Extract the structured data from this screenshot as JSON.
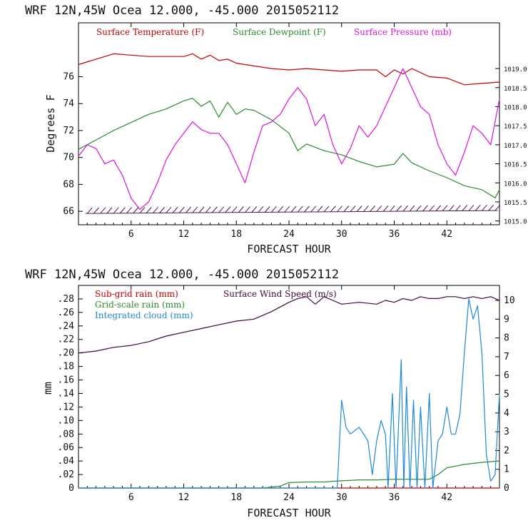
{
  "chart_data": [
    {
      "type": "line",
      "title": "WRF   12N,45W Ocea   12.000, -45.000   2015052112",
      "xlabel": "FORECAST HOUR",
      "ylabel": "Degrees F",
      "xlim": [
        0,
        48
      ],
      "ylim": [
        65,
        80
      ],
      "xticks": [
        "6",
        "12",
        "18",
        "24",
        "30",
        "36",
        "42"
      ],
      "yticks": [
        "66",
        "68",
        "70",
        "72",
        "74",
        "76"
      ],
      "y2lim": [
        1014.9,
        1020.2
      ],
      "y2ticks": [
        "1015.0",
        "1015.5",
        "1016.0",
        "1016.5",
        "1017.0",
        "1017.5",
        "1018.0",
        "1018.5",
        "1019.0"
      ],
      "series": [
        {
          "name": "Surface Temperature (F)",
          "color": "#c00000",
          "axis": "left",
          "x": [
            0,
            2,
            4,
            6,
            8,
            10,
            12,
            13,
            14,
            15,
            16,
            17,
            18,
            20,
            22,
            24,
            26,
            28,
            30,
            32,
            34,
            35,
            36,
            37,
            38,
            40,
            42,
            44,
            46,
            48
          ],
          "y": [
            76.9,
            77.3,
            77.7,
            77.6,
            77.5,
            77.5,
            77.5,
            77.7,
            77.3,
            77.6,
            77.2,
            77.3,
            77.0,
            76.8,
            76.6,
            76.5,
            76.6,
            76.5,
            76.4,
            76.5,
            76.5,
            76.0,
            76.5,
            76.2,
            76.6,
            76.0,
            75.9,
            75.4,
            75.5,
            75.6
          ]
        },
        {
          "name": "Surface Dewpoint (F)",
          "color": "#2a8a2a",
          "axis": "left",
          "x": [
            0,
            2,
            4,
            6,
            8,
            10,
            12,
            13,
            14,
            15,
            16,
            17,
            18,
            19,
            20,
            22,
            24,
            25,
            26,
            28,
            30,
            32,
            34,
            36,
            37,
            38,
            40,
            42,
            44,
            46,
            47.5,
            48
          ],
          "y": [
            70.6,
            71.3,
            72.0,
            72.6,
            73.2,
            73.6,
            74.2,
            74.4,
            73.8,
            74.2,
            73.0,
            74.1,
            73.2,
            73.6,
            73.5,
            72.8,
            71.8,
            70.5,
            71.0,
            70.5,
            70.2,
            69.7,
            69.3,
            69.5,
            70.3,
            69.6,
            69.0,
            68.5,
            67.9,
            67.6,
            67.0,
            67.6
          ]
        },
        {
          "name": "Surface Pressure (mb)",
          "color": "#e011e0",
          "axis": "right",
          "x": [
            0,
            1,
            2,
            3,
            4,
            5,
            6,
            7,
            8,
            9,
            10,
            11,
            12,
            13,
            14,
            15,
            16,
            17,
            18,
            19,
            20,
            21,
            22,
            23,
            24,
            25,
            26,
            27,
            28,
            29,
            30,
            31,
            32,
            33,
            34,
            35,
            36,
            37,
            38,
            39,
            40,
            41,
            42,
            43,
            44,
            45,
            46,
            47,
            48
          ],
          "y": [
            1016.7,
            1017.0,
            1016.9,
            1016.5,
            1016.6,
            1016.2,
            1015.6,
            1015.3,
            1015.5,
            1016.0,
            1016.6,
            1017.0,
            1017.3,
            1017.6,
            1017.4,
            1017.3,
            1017.3,
            1017.0,
            1016.5,
            1016.0,
            1016.8,
            1017.5,
            1017.6,
            1017.8,
            1018.2,
            1018.5,
            1018.2,
            1017.5,
            1017.8,
            1017.0,
            1016.5,
            1016.9,
            1017.5,
            1017.2,
            1017.5,
            1018.0,
            1018.5,
            1019.0,
            1018.5,
            1018.0,
            1017.8,
            1017.0,
            1016.5,
            1016.2,
            1016.8,
            1017.5,
            1017.3,
            1017.0,
            1018.2
          ]
        },
        {
          "name": "wind barbs",
          "color": "#4a1a4a",
          "axis": "left",
          "x": [
            0,
            48
          ],
          "y": [
            66,
            66
          ]
        }
      ]
    },
    {
      "type": "line",
      "title": "WRF   12N,45W Ocea   12.000, -45.000   2015052112",
      "xlabel": "FORECAST HOUR",
      "ylabel": "mm",
      "xlim": [
        0,
        48
      ],
      "ylim": [
        0,
        0.3
      ],
      "xticks": [
        "6",
        "12",
        "18",
        "24",
        "30",
        "36",
        "42"
      ],
      "yticks": [
        "0",
        ".02",
        ".04",
        ".06",
        ".08",
        ".10",
        ".12",
        ".14",
        ".16",
        ".18",
        ".20",
        ".22",
        ".24",
        ".26",
        ".28"
      ],
      "y2lim": [
        0,
        10.8
      ],
      "y2ticks": [
        "0",
        "1",
        "2",
        "3",
        "4",
        "5",
        "6",
        "7",
        "8",
        "9",
        "10"
      ],
      "series": [
        {
          "name": "Sub-grid rain (mm)",
          "color": "#c00000",
          "axis": "left",
          "x": [
            0,
            48
          ],
          "y": [
            0,
            0
          ]
        },
        {
          "name": "Grid-scale rain (mm)",
          "color": "#2a8a2a",
          "axis": "left",
          "x": [
            0,
            21,
            23,
            24,
            26,
            28,
            29,
            32,
            34,
            36,
            40,
            41,
            42,
            44,
            46,
            48
          ],
          "y": [
            0,
            0,
            0.003,
            0.008,
            0.009,
            0.009,
            0.01,
            0.012,
            0.012,
            0.013,
            0.013,
            0.02,
            0.03,
            0.035,
            0.038,
            0.04
          ]
        },
        {
          "name": "Integrated cloud (mm)",
          "color": "#1f88d8",
          "axis": "left",
          "x": [
            0,
            29.5,
            30,
            30.5,
            31,
            32,
            33,
            33.5,
            34,
            34.5,
            35,
            35.3,
            35.8,
            36.2,
            36.8,
            37.1,
            37.4,
            37.8,
            38.2,
            38.6,
            39.0,
            39.5,
            40.0,
            40.4,
            41,
            41.5,
            42,
            42.5,
            43,
            43.5,
            44,
            44.5,
            45,
            45.5,
            46,
            46.5,
            47,
            47.5,
            48
          ],
          "y": [
            0,
            0,
            0.13,
            0.09,
            0.08,
            0.09,
            0.07,
            0.02,
            0.07,
            0.1,
            0.08,
            0.0,
            0.14,
            0.0,
            0.19,
            0.0,
            0.15,
            0.0,
            0.13,
            0.0,
            0.12,
            0.0,
            0.14,
            0.0,
            0.07,
            0.08,
            0.12,
            0.08,
            0.08,
            0.11,
            0.2,
            0.28,
            0.25,
            0.27,
            0.2,
            0.05,
            0.01,
            0.02,
            0.14
          ]
        },
        {
          "name": "Surface Wind Speed (m/s)",
          "color": "#3a0a3a",
          "axis": "right",
          "x": [
            0,
            2,
            4,
            6,
            8,
            10,
            12,
            14,
            16,
            18,
            20,
            22,
            24,
            25,
            26,
            27,
            28,
            29,
            30,
            32,
            34,
            35,
            36,
            37,
            38,
            39,
            40,
            41,
            42,
            43,
            44,
            45,
            46,
            47,
            48
          ],
          "y": [
            7.2,
            7.3,
            7.5,
            7.6,
            7.8,
            8.1,
            8.3,
            8.5,
            8.7,
            8.9,
            9.0,
            9.4,
            9.9,
            10.1,
            10.2,
            9.8,
            10.2,
            10.0,
            9.8,
            9.9,
            9.8,
            10.0,
            9.9,
            10.1,
            10.0,
            10.2,
            10.1,
            10.1,
            10.2,
            10.2,
            10.1,
            10.2,
            10.1,
            10.2,
            10.0
          ]
        }
      ]
    }
  ]
}
